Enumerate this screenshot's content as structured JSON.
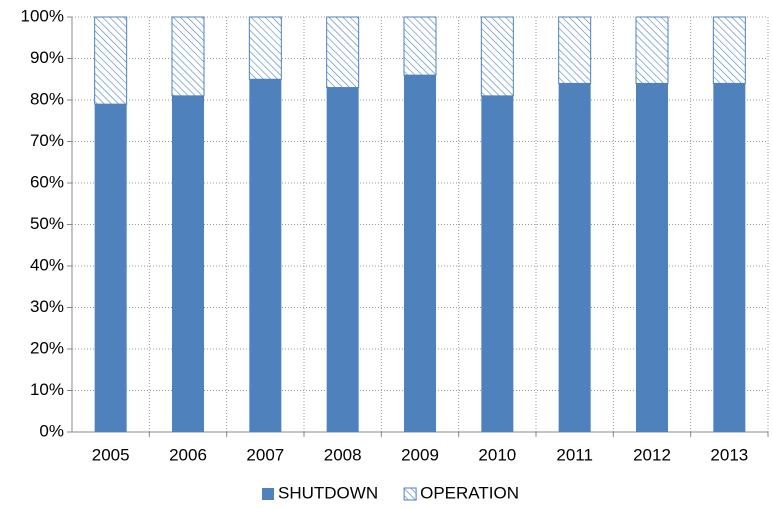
{
  "chart_data": {
    "type": "stacked_bar",
    "categories": [
      "2005",
      "2006",
      "2007",
      "2008",
      "2009",
      "2010",
      "2011",
      "2012",
      "2013"
    ],
    "series": [
      {
        "name": "SHUTDOWN",
        "color": "#4f81bd",
        "values": [
          79,
          81,
          85,
          83,
          86,
          81,
          84,
          84,
          84
        ]
      },
      {
        "name": "OPERATION",
        "color": "#4f81bd",
        "hatched": true,
        "values": [
          21,
          19,
          15,
          17,
          14,
          19,
          16,
          16,
          16
        ]
      }
    ],
    "ylim": [
      0,
      100
    ],
    "yticks": [
      {
        "value": 0,
        "label": "0%"
      },
      {
        "value": 10,
        "label": "10%"
      },
      {
        "value": 20,
        "label": "20%"
      },
      {
        "value": 30,
        "label": "30%"
      },
      {
        "value": 40,
        "label": "40%"
      },
      {
        "value": 50,
        "label": "50%"
      },
      {
        "value": 60,
        "label": "60%"
      },
      {
        "value": 70,
        "label": "70%"
      },
      {
        "value": 80,
        "label": "80%"
      },
      {
        "value": 90,
        "label": "90%"
      },
      {
        "value": 100,
        "label": "100%"
      }
    ],
    "grid": true,
    "legend": "bottom"
  }
}
